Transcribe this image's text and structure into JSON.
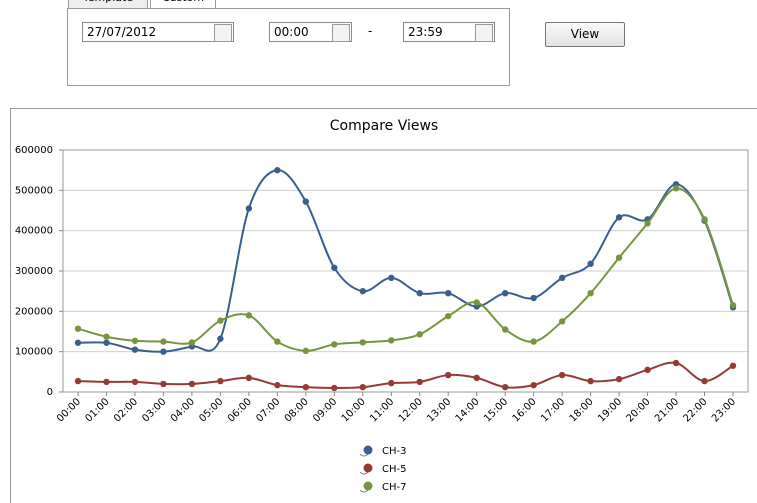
{
  "form": {
    "tabs": [
      "Template",
      "Custom"
    ],
    "date": "27/07/2012",
    "time_from": "00:00",
    "separator": "-",
    "time_to": "23:59",
    "button": "View"
  },
  "chart_data": {
    "type": "line",
    "title": "Compare Views",
    "categories": [
      "00:00",
      "01:00",
      "02:00",
      "03:00",
      "04:00",
      "05:00",
      "06:00",
      "07:00",
      "08:00",
      "09:00",
      "10:00",
      "11:00",
      "12:00",
      "13:00",
      "14:00",
      "15:00",
      "16:00",
      "17:00",
      "18:00",
      "19:00",
      "20:00",
      "21:00",
      "22:00",
      "23:00"
    ],
    "series": [
      {
        "name": "CH-3",
        "color": "#3a5f8f",
        "values": [
          122000,
          122000,
          105000,
          100000,
          113000,
          132000,
          455000,
          550000,
          472000,
          308000,
          250000,
          283000,
          245000,
          245000,
          212000,
          245000,
          233000,
          283000,
          318000,
          433000,
          428000,
          515000,
          425000,
          210000
        ]
      },
      {
        "name": "CH-5",
        "color": "#963a36",
        "values": [
          27000,
          25000,
          25000,
          20000,
          20000,
          27000,
          35000,
          17000,
          12000,
          10000,
          12000,
          22000,
          25000,
          42000,
          35000,
          12000,
          17000,
          42000,
          27000,
          32000,
          55000,
          72000,
          27000,
          65000
        ]
      },
      {
        "name": "CH-7",
        "color": "#779540",
        "values": [
          157000,
          137000,
          127000,
          125000,
          123000,
          177000,
          190000,
          125000,
          102000,
          118000,
          123000,
          128000,
          143000,
          188000,
          222000,
          155000,
          125000,
          175000,
          245000,
          333000,
          418000,
          505000,
          428000,
          215000
        ]
      }
    ],
    "ylim": [
      0,
      600000
    ],
    "yticks": [
      0,
      100000,
      200000,
      300000,
      400000,
      500000,
      600000
    ],
    "grid": true,
    "legend": "bottom"
  }
}
